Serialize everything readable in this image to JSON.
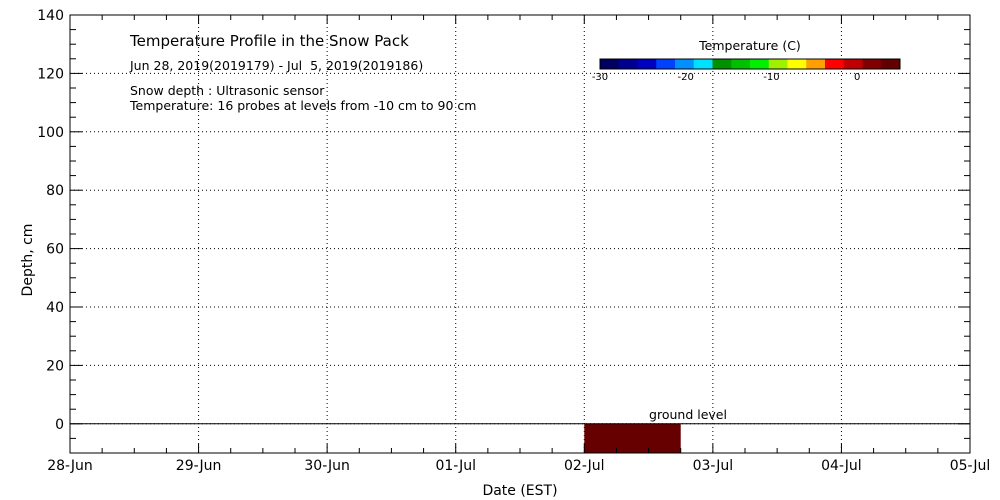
{
  "chart_data": {
    "type": "heatmap",
    "title": "Temperature Profile in the Snow Pack",
    "subtitle": "Jun 28, 2019(2019179) - Jul  5, 2019(2019186)",
    "notes": [
      "Snow depth : Ultrasonic sensor",
      "Temperature: 16 probes at levels from -10 cm to 90 cm"
    ],
    "xlabel": "Date (EST)",
    "ylabel": "Depth, cm",
    "x_ticks": [
      "28-Jun",
      "29-Jun",
      "30-Jun",
      "01-Jul",
      "02-Jul",
      "03-Jul",
      "04-Jul",
      "05-Jul"
    ],
    "xlim": [
      0,
      7
    ],
    "ylim": [
      -10,
      140
    ],
    "y_ticks": [
      0,
      20,
      40,
      60,
      80,
      100,
      120,
      140
    ],
    "grid": true,
    "ground_level": 0,
    "ground_label": "ground level",
    "colorbar": {
      "title": "Temperature (C)",
      "range": [
        -30,
        5
      ],
      "ticks": [
        -30,
        -20,
        -10,
        0
      ],
      "colors": [
        "#000060",
        "#000090",
        "#0000c0",
        "#0040ff",
        "#0090ff",
        "#00e0ff",
        "#009000",
        "#00c000",
        "#00f000",
        "#a0f000",
        "#ffff00",
        "#ffa000",
        "#ff0000",
        "#c00000",
        "#800000",
        "#600000"
      ]
    },
    "temperature_blocks": [
      {
        "x_start": 4.0,
        "x_end": 4.75,
        "depth_top": 0,
        "depth_bottom": -10,
        "color": "#660000"
      }
    ]
  }
}
